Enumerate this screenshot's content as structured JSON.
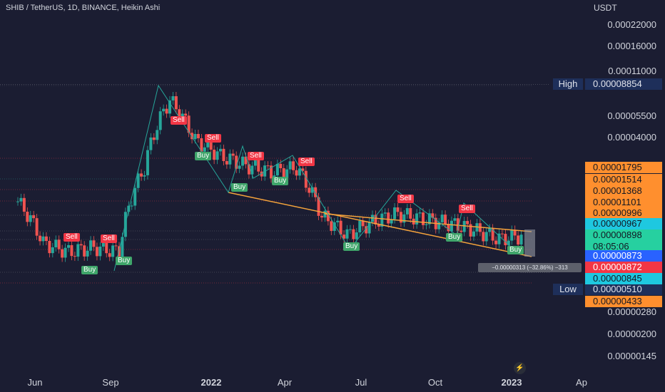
{
  "header": {
    "title": "SHIB / TetherUS, 1D, BINANCE, Heikin Ashi",
    "unit": "USDT"
  },
  "price_axis": [
    "0.00022000",
    "0.00016000",
    "0.00011000",
    "0.00005500",
    "0.00004000",
    "0.00000280",
    "0.00000200",
    "0.00000145"
  ],
  "time_axis": [
    {
      "label": "Jun",
      "bold": false
    },
    {
      "label": "Sep",
      "bold": false
    },
    {
      "label": "2022",
      "bold": true
    },
    {
      "label": "Apr",
      "bold": false
    },
    {
      "label": "Jul",
      "bold": false
    },
    {
      "label": "Oct",
      "bold": false
    },
    {
      "label": "2023",
      "bold": true
    },
    {
      "label": "Ap",
      "bold": false
    }
  ],
  "high_low": {
    "high_label": "High",
    "high_value": "0.00008854",
    "low_label": "Low",
    "low_value": "0.00000510"
  },
  "price_tags": [
    {
      "value": "0.00001795",
      "color": "#ff8f2e"
    },
    {
      "value": "0.00001514",
      "color": "#ff8f2e"
    },
    {
      "value": "0.00001368",
      "color": "#ff8f2e"
    },
    {
      "value": "0.00001101",
      "color": "#ff8f2e"
    },
    {
      "value": "0.00000996",
      "color": "#ff8f2e"
    },
    {
      "value": "0.00000967",
      "color": "#1ec8e0"
    },
    {
      "value": "0.00000898",
      "color": "#26d0a0",
      "sub": "08:05:06"
    },
    {
      "value": "0.00000873",
      "color": "#2962ff"
    },
    {
      "value": "0.00000872",
      "color": "#f23645"
    },
    {
      "value": "0.00000845",
      "color": "#1ec8e0"
    },
    {
      "value": "0.00000433",
      "color": "#ff8f2e"
    }
  ],
  "measurement": "−0.00000313 (−32.86%) −313",
  "signals": [
    {
      "text": "Sell",
      "kind": "sell"
    },
    {
      "text": "Sell",
      "kind": "sell"
    },
    {
      "text": "Buy",
      "kind": "buy"
    },
    {
      "text": "Buy",
      "kind": "buy"
    },
    {
      "text": "Sell",
      "kind": "sell"
    },
    {
      "text": "Sell",
      "kind": "sell"
    },
    {
      "text": "Buy",
      "kind": "buy"
    },
    {
      "text": "Sell",
      "kind": "sell"
    },
    {
      "text": "Buy",
      "kind": "buy"
    },
    {
      "text": "Buy",
      "kind": "buy"
    },
    {
      "text": "Sell",
      "kind": "sell"
    },
    {
      "text": "Buy",
      "kind": "buy"
    },
    {
      "text": "Sell",
      "kind": "sell"
    },
    {
      "text": "Buy",
      "kind": "buy"
    },
    {
      "text": "Buy",
      "kind": "buy"
    },
    {
      "text": "Sell",
      "kind": "sell"
    }
  ],
  "chart_data": {
    "type": "line",
    "title": "SHIB / TetherUS, 1D, BINANCE, Heikin Ashi",
    "yscale": "log",
    "x": [
      "2021-05",
      "2021-06",
      "2021-07",
      "2021-08",
      "2021-09",
      "2021-10",
      "2021-11",
      "2021-12",
      "2022-01",
      "2022-02",
      "2022-03",
      "2022-04",
      "2022-05",
      "2022-06",
      "2022-07",
      "2022-08",
      "2022-09",
      "2022-10",
      "2022-11",
      "2022-12",
      "2023-01"
    ],
    "series": [
      {
        "values": [
          1.5e-05,
          8e-06,
          7e-06,
          7.5e-06,
          7e-06,
          2.5e-05,
          7e-05,
          3.8e-05,
          3e-05,
          2.6e-05,
          2.35e-05,
          2.5e-05,
          1.2e-05,
          9e-06,
          1.1e-05,
          1.25e-05,
          1.15e-05,
          1.08e-05,
          9.8e-06,
          8.5e-06,
          9e-06
        ]
      }
    ],
    "high": 8.854e-05,
    "low": 5.1e-06,
    "colors": {
      "up": "#26a69a",
      "down": "#ef5350",
      "trendline": "#f5a33b"
    }
  }
}
